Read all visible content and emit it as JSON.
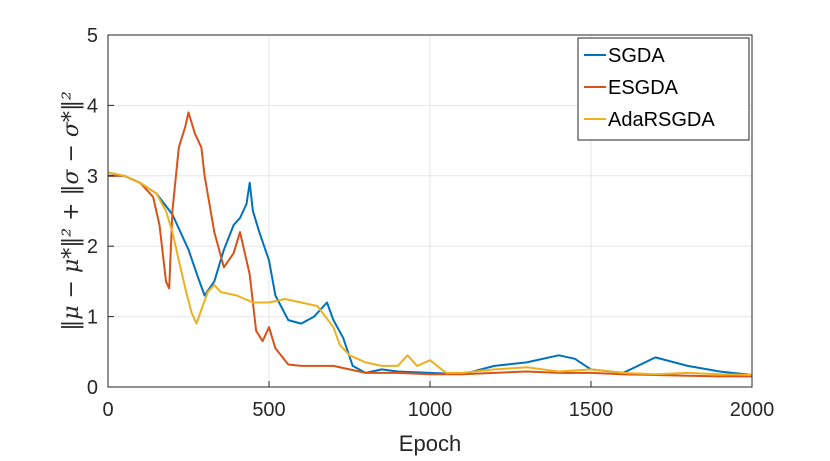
{
  "chart_data": {
    "type": "line",
    "xlabel": "Epoch",
    "ylabel": "‖μ − μ*‖² + ‖σ − σ*‖²",
    "xlim": [
      0,
      2000
    ],
    "ylim": [
      0,
      5
    ],
    "xticks": [
      "0",
      "500",
      "1000",
      "1500",
      "2000"
    ],
    "yticks": [
      "0",
      "1",
      "2",
      "3",
      "4",
      "5"
    ],
    "grid": true,
    "legend_position": "top-right",
    "series": [
      {
        "name": "SGDA",
        "color": "#0072BD",
        "x": [
          0,
          50,
          100,
          150,
          200,
          250,
          280,
          300,
          330,
          360,
          390,
          410,
          430,
          440,
          450,
          470,
          500,
          520,
          560,
          600,
          640,
          680,
          700,
          730,
          760,
          800,
          850,
          900,
          1000,
          1100,
          1200,
          1300,
          1400,
          1450,
          1500,
          1600,
          1700,
          1800,
          1900,
          2000
        ],
        "y": [
          3.0,
          3.0,
          2.9,
          2.75,
          2.45,
          1.95,
          1.55,
          1.3,
          1.5,
          1.95,
          2.3,
          2.4,
          2.6,
          2.9,
          2.5,
          2.2,
          1.8,
          1.3,
          0.95,
          0.9,
          1.0,
          1.2,
          0.95,
          0.7,
          0.3,
          0.2,
          0.25,
          0.22,
          0.2,
          0.18,
          0.3,
          0.35,
          0.45,
          0.4,
          0.25,
          0.2,
          0.42,
          0.3,
          0.22,
          0.17
        ]
      },
      {
        "name": "ESGDA",
        "color": "#D95319",
        "x": [
          0,
          50,
          100,
          140,
          160,
          180,
          190,
          200,
          220,
          240,
          250,
          270,
          290,
          300,
          330,
          360,
          390,
          410,
          440,
          460,
          480,
          500,
          520,
          560,
          600,
          700,
          800,
          900,
          1000,
          1100,
          1200,
          1300,
          1400,
          1500,
          1600,
          1700,
          1800,
          1900,
          2000
        ],
        "y": [
          3.0,
          3.0,
          2.9,
          2.7,
          2.3,
          1.5,
          1.4,
          2.5,
          3.4,
          3.7,
          3.9,
          3.6,
          3.4,
          3.0,
          2.2,
          1.7,
          1.9,
          2.2,
          1.6,
          0.8,
          0.65,
          0.85,
          0.55,
          0.32,
          0.3,
          0.3,
          0.2,
          0.2,
          0.18,
          0.18,
          0.2,
          0.22,
          0.2,
          0.2,
          0.18,
          0.17,
          0.16,
          0.15,
          0.15
        ]
      },
      {
        "name": "AdaRSGDA",
        "color": "#EDB120",
        "x": [
          0,
          50,
          100,
          150,
          180,
          200,
          220,
          240,
          260,
          275,
          290,
          310,
          330,
          350,
          400,
          450,
          500,
          550,
          600,
          650,
          700,
          720,
          750,
          800,
          850,
          900,
          930,
          960,
          1000,
          1050,
          1100,
          1200,
          1300,
          1400,
          1500,
          1600,
          1700,
          1800,
          1900,
          2000
        ],
        "y": [
          3.05,
          3.0,
          2.9,
          2.75,
          2.5,
          2.2,
          1.8,
          1.4,
          1.05,
          0.9,
          1.1,
          1.35,
          1.45,
          1.35,
          1.3,
          1.2,
          1.2,
          1.25,
          1.2,
          1.15,
          0.85,
          0.6,
          0.45,
          0.35,
          0.3,
          0.3,
          0.45,
          0.3,
          0.38,
          0.2,
          0.2,
          0.25,
          0.28,
          0.22,
          0.25,
          0.2,
          0.18,
          0.2,
          0.18,
          0.17
        ]
      }
    ]
  }
}
